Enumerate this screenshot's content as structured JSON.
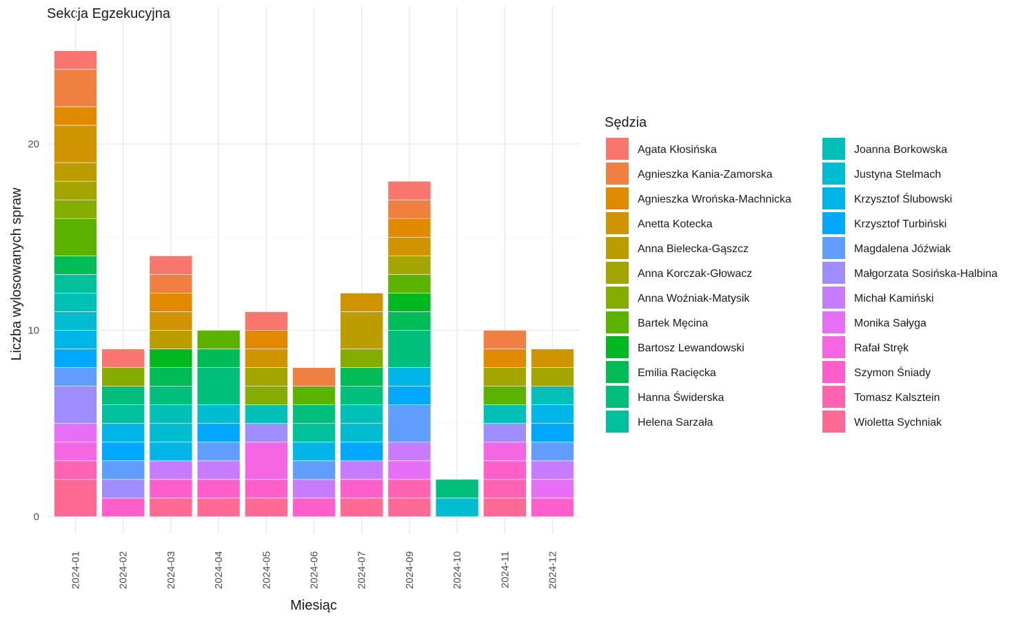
{
  "chart_data": {
    "type": "bar",
    "stacked": true,
    "title": "Sekcja Egzekucyjna",
    "xlabel": "Miesiąc",
    "ylabel": "Liczba wylosowanych spraw",
    "ylim": [
      0,
      26
    ],
    "yticks": [
      0,
      10,
      20
    ],
    "grid": true,
    "legend_title": "Sędzia",
    "legend_position": "right",
    "categories": [
      "2024-01",
      "2024-02",
      "2024-03",
      "2024-04",
      "2024-05",
      "2024-06",
      "2024-07",
      "2024-09",
      "2024-10",
      "2024-11",
      "2024-12"
    ],
    "series": [
      {
        "name": "Agata Kłosińska",
        "color": "#F8766D",
        "values": [
          1,
          1,
          1,
          0,
          1,
          0,
          0,
          1,
          0,
          0,
          0
        ]
      },
      {
        "name": "Agnieszka Kania-Zamorska",
        "color": "#EF8042",
        "values": [
          2,
          0,
          1,
          0,
          0,
          1,
          0,
          1,
          0,
          1,
          0
        ]
      },
      {
        "name": "Agnieszka Wrońska-Machnicka",
        "color": "#E18A00",
        "values": [
          1,
          0,
          1,
          0,
          1,
          0,
          0,
          1,
          0,
          1,
          0
        ]
      },
      {
        "name": "Anetta Kotecka",
        "color": "#D09400",
        "values": [
          2,
          0,
          1,
          0,
          1,
          0,
          1,
          1,
          0,
          0,
          1
        ]
      },
      {
        "name": "Anna Bielecka-Gąszcz",
        "color": "#BB9D00",
        "values": [
          1,
          0,
          1,
          0,
          0,
          0,
          2,
          0,
          0,
          0,
          0
        ]
      },
      {
        "name": "Anna Korczak-Głowacz",
        "color": "#A3A500",
        "values": [
          1,
          0,
          0,
          0,
          1,
          0,
          0,
          1,
          0,
          1,
          1
        ]
      },
      {
        "name": "Anna Woźniak-Matysik",
        "color": "#85AD00",
        "values": [
          1,
          1,
          0,
          0,
          1,
          0,
          1,
          0,
          0,
          0,
          0
        ]
      },
      {
        "name": "Bartek Męcina",
        "color": "#5BB300",
        "values": [
          2,
          0,
          0,
          1,
          0,
          1,
          0,
          1,
          0,
          1,
          0
        ]
      },
      {
        "name": "Bartosz Lewandowski",
        "color": "#00B81F",
        "values": [
          0,
          0,
          1,
          0,
          0,
          0,
          0,
          1,
          0,
          0,
          0
        ]
      },
      {
        "name": "Emilia Racięcka",
        "color": "#00BC56",
        "values": [
          1,
          0,
          1,
          1,
          0,
          0,
          1,
          1,
          0,
          0,
          0
        ]
      },
      {
        "name": "Hanna Świderska",
        "color": "#00BF7D",
        "values": [
          0,
          1,
          1,
          2,
          0,
          1,
          1,
          2,
          1,
          0,
          0
        ]
      },
      {
        "name": "Helena Sarzała",
        "color": "#00C19C",
        "values": [
          1,
          1,
          0,
          0,
          0,
          1,
          0,
          0,
          0,
          0,
          0
        ]
      },
      {
        "name": "Joanna Borkowska",
        "color": "#00C0B8",
        "values": [
          1,
          0,
          1,
          0,
          1,
          0,
          1,
          0,
          0,
          1,
          1
        ]
      },
      {
        "name": "Justyna Stelmach",
        "color": "#00BCD1",
        "values": [
          1,
          0,
          1,
          1,
          0,
          0,
          1,
          0,
          1,
          0,
          0
        ]
      },
      {
        "name": "Krzysztof Ślubowski",
        "color": "#00B5E7",
        "values": [
          1,
          1,
          1,
          0,
          0,
          1,
          0,
          1,
          0,
          0,
          1
        ]
      },
      {
        "name": "Krzysztof Turbiński",
        "color": "#00A9FF",
        "values": [
          1,
          1,
          0,
          1,
          0,
          0,
          1,
          1,
          0,
          0,
          1
        ]
      },
      {
        "name": "Magdalena Jóźwiak",
        "color": "#619CFF",
        "values": [
          1,
          1,
          0,
          1,
          0,
          1,
          0,
          2,
          0,
          0,
          1
        ]
      },
      {
        "name": "Małgorzata Sosińska-Halbina",
        "color": "#9F8CFF",
        "values": [
          2,
          1,
          0,
          0,
          1,
          0,
          0,
          0,
          0,
          1,
          0
        ]
      },
      {
        "name": "Michał Kamiński",
        "color": "#C77CFF",
        "values": [
          0,
          0,
          1,
          1,
          0,
          1,
          1,
          1,
          0,
          0,
          1
        ]
      },
      {
        "name": "Monika Sałyga",
        "color": "#E66FF5",
        "values": [
          1,
          0,
          0,
          0,
          0,
          0,
          0,
          1,
          0,
          0,
          1
        ]
      },
      {
        "name": "Rafał Stręk",
        "color": "#F566E2",
        "values": [
          1,
          0,
          0,
          0,
          2,
          0,
          0,
          0,
          0,
          1,
          0
        ]
      },
      {
        "name": "Szymon Śniady",
        "color": "#FF5FCB",
        "values": [
          0,
          1,
          1,
          1,
          1,
          1,
          1,
          0,
          0,
          1,
          1
        ]
      },
      {
        "name": "Tomasz Kalsztein",
        "color": "#FF63B1",
        "values": [
          1,
          0,
          0,
          0,
          0,
          0,
          0,
          1,
          0,
          1,
          0
        ]
      },
      {
        "name": "Wioletta Sychniak",
        "color": "#FF6A95",
        "values": [
          2,
          0,
          1,
          1,
          1,
          0,
          1,
          1,
          0,
          1,
          0
        ]
      }
    ]
  }
}
